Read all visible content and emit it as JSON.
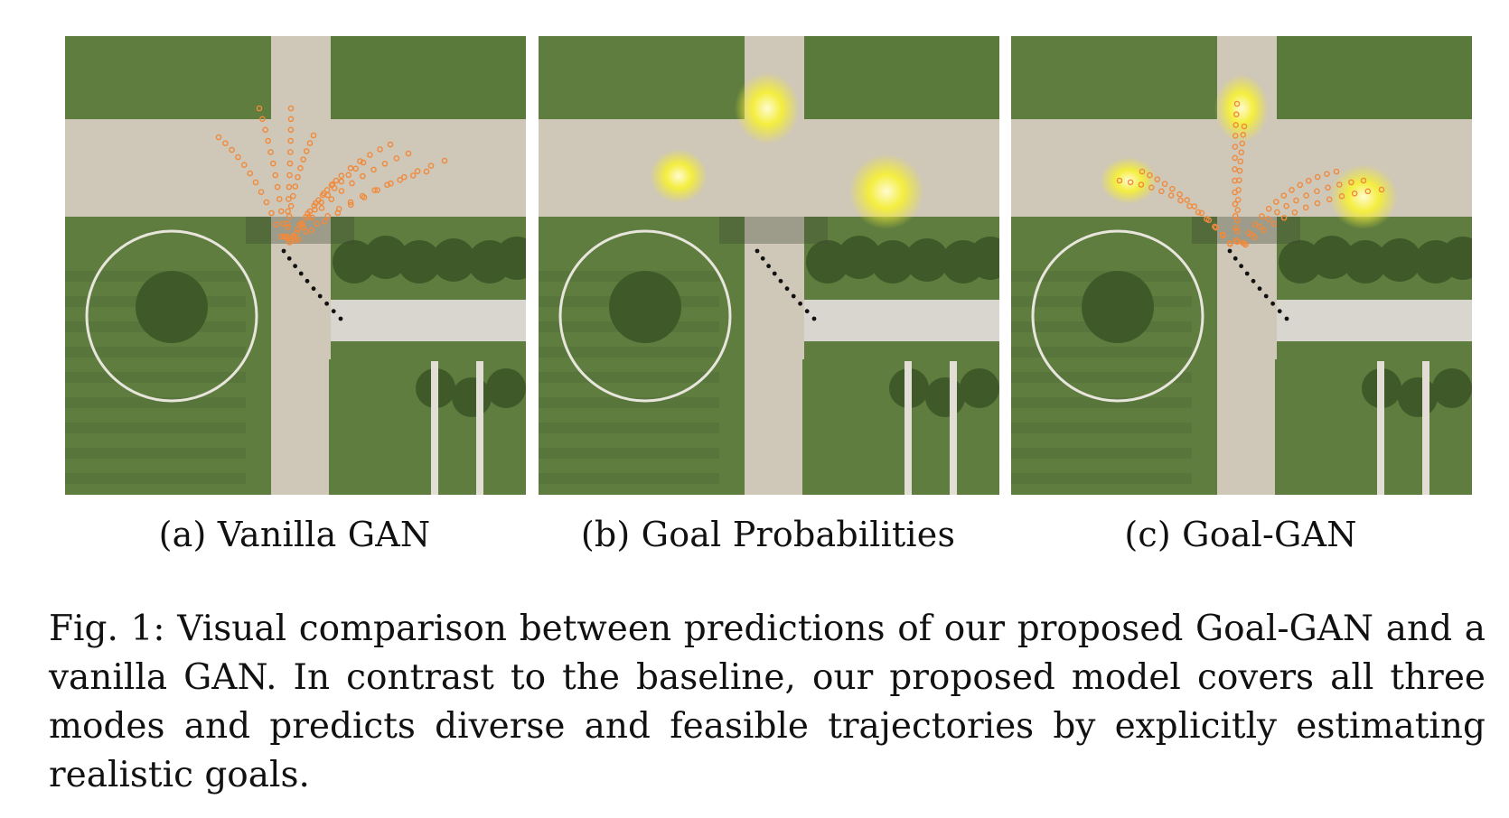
{
  "figure": {
    "panels": [
      {
        "id": "a",
        "label": "(a) Vanilla GAN",
        "overlay": "predicted trajectories",
        "trajectory_color": "#f08a3c"
      },
      {
        "id": "b",
        "label": "(b) Goal Probabilities",
        "overlay": "goal probability heatmap",
        "heat_color": "#f5f03a"
      },
      {
        "id": "c",
        "label": "(c) Goal-GAN",
        "overlay": "goal heatmap + trajectories",
        "trajectory_color": "#f08a3c",
        "heat_color": "#f5f03a"
      }
    ],
    "caption": "Fig. 1: Visual comparison between predictions of our proposed Goal-GAN and a vanilla GAN. In contrast to the baseline, our proposed model covers all three modes and predicts diverse and feasible trajectories by explicitly estimating realistic goals."
  },
  "colors": {
    "grass": "#5f7d3f",
    "grass_dark": "#4d6a33",
    "path": "#cfc7b8",
    "trees": "#3f5a28",
    "circle": "#e8e6dc",
    "observed": "#111111"
  }
}
